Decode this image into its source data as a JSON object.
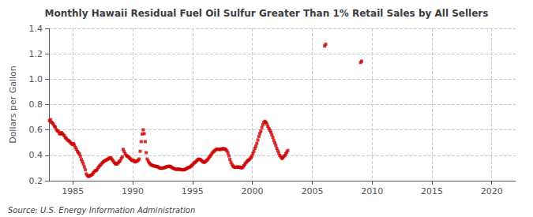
{
  "chart_data": {
    "type": "scatter",
    "title": "Monthly Hawaii Residual Fuel Oil Sulfur Greater Than 1% Retail Sales by All Sellers",
    "ylabel": "Dollars per Gallon",
    "annotations": [
      "Source: U.S. Energy Information Administration"
    ],
    "color": "#cc0000",
    "marker": "square",
    "grid": true,
    "xlim": [
      1983,
      2022
    ],
    "ylim": [
      0.2,
      1.4
    ],
    "xticks": [
      1985,
      1990,
      1995,
      2000,
      2005,
      2010,
      2015,
      2020
    ],
    "yticks": [
      0.2,
      0.4,
      0.6,
      0.8,
      {
        "value": 1.0,
        "label": "1.0"
      },
      1.2,
      1.4
    ],
    "x": [
      1983.0416666666667,
      1983.125,
      1983.2083333333333,
      1983.2916666666667,
      1983.375,
      1983.4583333333333,
      1983.5416666666667,
      1983.625,
      1983.7083333333333,
      1983.7916666666667,
      1983.875,
      1983.9583333333333,
      1984.0416666666667,
      1984.125,
      1984.2083333333333,
      1984.2916666666667,
      1984.375,
      1984.4583333333333,
      1984.5416666666667,
      1984.625,
      1984.7083333333333,
      1984.7916666666667,
      1984.875,
      1984.9583333333333,
      1985.0416666666667,
      1985.125,
      1985.2083333333333,
      1985.2916666666667,
      1985.375,
      1985.4583333333333,
      1985.5416666666667,
      1985.625,
      1985.7083333333333,
      1985.7916666666667,
      1985.875,
      1985.9583333333333,
      1986.0416666666667,
      1986.125,
      1986.2083333333333,
      1986.2916666666667,
      1986.375,
      1986.4583333333333,
      1986.5416666666667,
      1986.625,
      1986.7083333333333,
      1986.7916666666667,
      1986.875,
      1986.9583333333333,
      1987.0416666666667,
      1987.125,
      1987.2083333333333,
      1987.2916666666667,
      1987.375,
      1987.4583333333333,
      1987.5416666666667,
      1987.625,
      1987.7083333333333,
      1987.7916666666667,
      1987.875,
      1987.9583333333333,
      1988.0416666666667,
      1988.125,
      1988.2083333333333,
      1988.2916666666667,
      1988.375,
      1988.4583333333333,
      1988.5416666666667,
      1988.625,
      1988.7083333333333,
      1988.7916666666667,
      1988.875,
      1988.9583333333333,
      1989.0416666666667,
      1989.125,
      1989.2083333333333,
      1989.2916666666667,
      1989.375,
      1989.4583333333333,
      1989.5416666666667,
      1989.625,
      1989.7083333333333,
      1989.7916666666667,
      1989.875,
      1989.9583333333333,
      1990.0416666666667,
      1990.125,
      1990.2083333333333,
      1990.2916666666667,
      1990.375,
      1990.4583333333333,
      1990.5416666666667,
      1990.625,
      1990.7083333333333,
      1990.7916666666667,
      1990.875,
      1990.9583333333333,
      1991.0416666666667,
      1991.125,
      1991.2083333333333,
      1991.2916666666667,
      1991.375,
      1991.4583333333333,
      1991.5416666666667,
      1991.625,
      1991.7083333333333,
      1991.7916666666667,
      1991.875,
      1991.9583333333333,
      1992.0416666666667,
      1992.125,
      1992.2083333333333,
      1992.2916666666667,
      1992.375,
      1992.4583333333333,
      1992.5416666666667,
      1992.625,
      1992.7083333333333,
      1992.7916666666667,
      1992.875,
      1992.9583333333333,
      1993.0416666666667,
      1993.125,
      1993.2083333333333,
      1993.2916666666667,
      1993.375,
      1993.4583333333333,
      1993.5416666666667,
      1993.625,
      1993.7083333333333,
      1993.7916666666667,
      1993.875,
      1993.9583333333333,
      1994.0416666666667,
      1994.125,
      1994.2083333333333,
      1994.2916666666667,
      1994.375,
      1994.4583333333333,
      1994.5416666666667,
      1994.625,
      1994.7083333333333,
      1994.7916666666667,
      1994.875,
      1994.9583333333333,
      1995.0416666666667,
      1995.125,
      1995.2083333333333,
      1995.2916666666667,
      1995.375,
      1995.4583333333333,
      1995.5416666666667,
      1995.625,
      1995.7083333333333,
      1995.7916666666667,
      1995.875,
      1995.9583333333333,
      1996.0416666666667,
      1996.125,
      1996.2083333333333,
      1996.2916666666667,
      1996.375,
      1996.4583333333333,
      1996.5416666666667,
      1996.625,
      1996.7083333333333,
      1996.7916666666667,
      1996.875,
      1996.9583333333333,
      1997.0416666666667,
      1997.125,
      1997.2083333333333,
      1997.2916666666667,
      1997.375,
      1997.4583333333333,
      1997.5416666666667,
      1997.625,
      1997.7083333333333,
      1997.7916666666667,
      1997.875,
      1997.9583333333333,
      1998.0416666666667,
      1998.125,
      1998.2083333333333,
      1998.2916666666667,
      1998.375,
      1998.4583333333333,
      1998.5416666666667,
      1998.625,
      1998.7083333333333,
      1998.7916666666667,
      1998.875,
      1998.9583333333333,
      1999.0416666666667,
      1999.125,
      1999.2083333333333,
      1999.2916666666667,
      1999.375,
      1999.4583333333333,
      1999.5416666666667,
      1999.625,
      1999.7083333333333,
      1999.7916666666667,
      1999.875,
      1999.9583333333333,
      2000.0416666666667,
      2000.125,
      2000.2083333333333,
      2000.2916666666667,
      2000.375,
      2000.4583333333333,
      2000.5416666666667,
      2000.625,
      2000.7083333333333,
      2000.7916666666667,
      2000.875,
      2000.9583333333333,
      2001.0416666666667,
      2001.125,
      2001.2083333333333,
      2001.2916666666667,
      2001.375,
      2001.4583333333333,
      2001.5416666666667,
      2001.625,
      2001.7083333333333,
      2001.7916666666667,
      2001.875,
      2001.9583333333333,
      2002.0416666666667,
      2002.125,
      2002.2083333333333,
      2002.2916666666667,
      2002.375,
      2002.4583333333333,
      2002.5416666666667,
      2002.625,
      2002.7083333333333,
      2002.7916666666667,
      2002.875,
      2002.9583333333333,
      2006.0416666666667,
      2006.125,
      2009.0416666666667,
      2009.125
    ],
    "values": [
      0.673,
      0.681,
      0.661,
      0.655,
      0.644,
      0.628,
      0.622,
      0.601,
      0.593,
      0.588,
      0.572,
      0.568,
      0.579,
      0.571,
      0.563,
      0.553,
      0.539,
      0.532,
      0.521,
      0.517,
      0.509,
      0.502,
      0.493,
      0.485,
      0.493,
      0.481,
      0.462,
      0.448,
      0.432,
      0.421,
      0.411,
      0.393,
      0.367,
      0.35,
      0.332,
      0.309,
      0.286,
      0.253,
      0.241,
      0.233,
      0.236,
      0.241,
      0.245,
      0.251,
      0.261,
      0.272,
      0.279,
      0.281,
      0.291,
      0.305,
      0.315,
      0.322,
      0.331,
      0.341,
      0.348,
      0.355,
      0.358,
      0.363,
      0.368,
      0.372,
      0.378,
      0.382,
      0.375,
      0.365,
      0.355,
      0.342,
      0.334,
      0.331,
      0.335,
      0.341,
      0.351,
      0.358,
      0.375,
      0.388,
      0.447,
      0.428,
      0.412,
      0.4,
      0.393,
      0.389,
      0.381,
      0.373,
      0.365,
      0.358,
      0.361,
      0.355,
      0.348,
      0.351,
      0.356,
      0.362,
      0.371,
      0.432,
      0.508,
      0.568,
      0.601,
      0.571,
      0.508,
      0.421,
      0.371,
      0.355,
      0.341,
      0.332,
      0.325,
      0.321,
      0.319,
      0.316,
      0.315,
      0.311,
      0.312,
      0.308,
      0.302,
      0.299,
      0.298,
      0.299,
      0.301,
      0.302,
      0.305,
      0.308,
      0.311,
      0.312,
      0.315,
      0.312,
      0.308,
      0.303,
      0.299,
      0.295,
      0.292,
      0.29,
      0.29,
      0.291,
      0.291,
      0.289,
      0.288,
      0.286,
      0.285,
      0.287,
      0.289,
      0.293,
      0.298,
      0.302,
      0.305,
      0.309,
      0.315,
      0.322,
      0.331,
      0.339,
      0.345,
      0.352,
      0.36,
      0.367,
      0.37,
      0.368,
      0.362,
      0.355,
      0.349,
      0.344,
      0.348,
      0.355,
      0.362,
      0.371,
      0.382,
      0.392,
      0.403,
      0.415,
      0.425,
      0.432,
      0.439,
      0.445,
      0.448,
      0.449,
      0.447,
      0.445,
      0.448,
      0.451,
      0.453,
      0.452,
      0.449,
      0.445,
      0.435,
      0.418,
      0.395,
      0.368,
      0.345,
      0.328,
      0.316,
      0.309,
      0.305,
      0.306,
      0.307,
      0.308,
      0.308,
      0.305,
      0.302,
      0.302,
      0.307,
      0.318,
      0.331,
      0.341,
      0.351,
      0.359,
      0.364,
      0.371,
      0.381,
      0.395,
      0.415,
      0.432,
      0.455,
      0.472,
      0.495,
      0.521,
      0.548,
      0.571,
      0.591,
      0.618,
      0.641,
      0.659,
      0.668,
      0.661,
      0.648,
      0.628,
      0.611,
      0.598,
      0.582,
      0.562,
      0.541,
      0.518,
      0.498,
      0.478,
      0.455,
      0.435,
      0.418,
      0.399,
      0.388,
      0.375,
      0.381,
      0.391,
      0.398,
      0.411,
      0.425,
      0.438,
      1.261,
      1.275,
      1.131,
      1.142
    ]
  }
}
